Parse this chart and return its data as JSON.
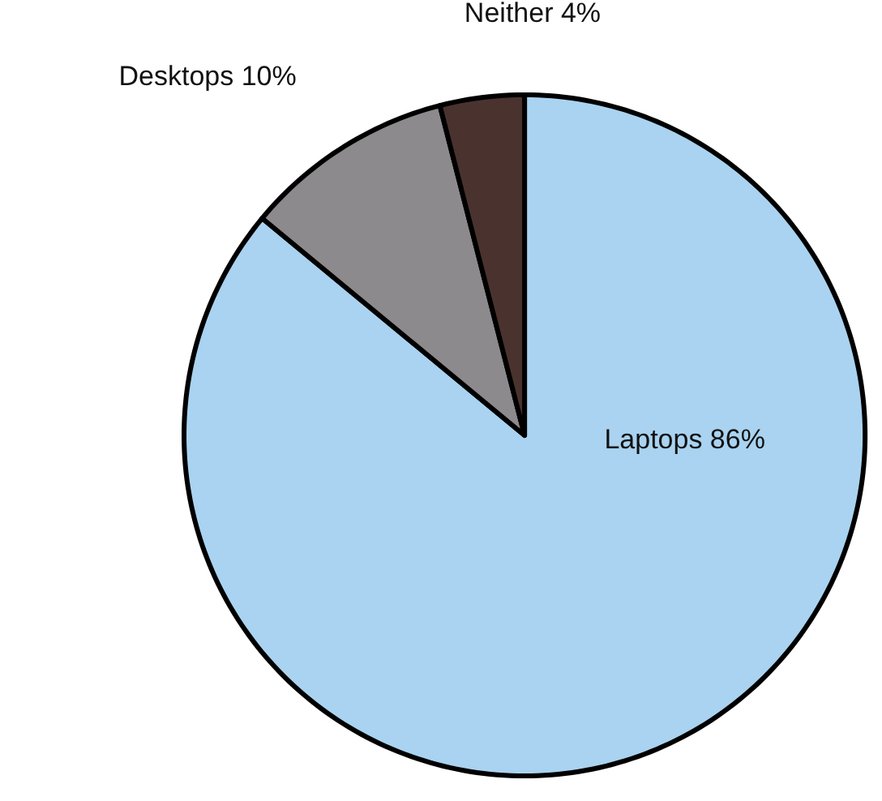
{
  "chart_data": {
    "type": "pie",
    "categories": [
      "Laptops",
      "Desktops",
      "Neither"
    ],
    "values": [
      86,
      10,
      4
    ],
    "value_labels": [
      "86%",
      "10%",
      "4%"
    ],
    "colors": [
      "#a9d3f0",
      "#8c8a8c",
      "#4a332e"
    ]
  }
}
